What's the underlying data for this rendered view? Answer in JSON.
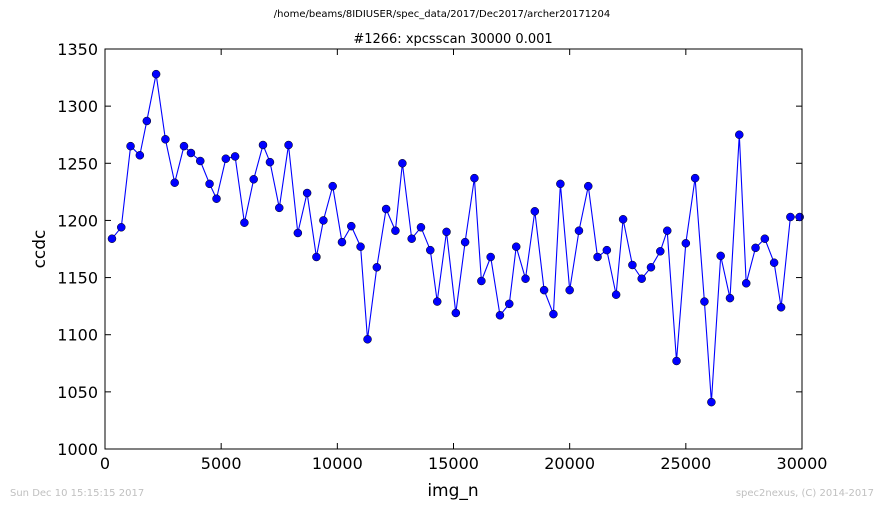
{
  "suptitle": "/home/beams/8IDIUSER/spec_data/2017/Dec2017/archer20171204",
  "footer": {
    "left": "Sun Dec 10 15:15:15 2017",
    "right": "spec2nexus, (C) 2014-2017"
  },
  "chart_data": {
    "type": "line",
    "title": "#1266: xpcsscan 30000 0.001",
    "xlabel": "img_n",
    "ylabel": "ccdc",
    "xlim": [
      0,
      30000
    ],
    "ylim": [
      1000,
      1350
    ],
    "xticks": [
      0,
      5000,
      10000,
      15000,
      20000,
      25000,
      30000
    ],
    "yticks": [
      1000,
      1050,
      1100,
      1150,
      1200,
      1250,
      1300,
      1350
    ],
    "grid": false,
    "marker": "circle",
    "color": "#0000ff",
    "series": [
      {
        "x": [
          300,
          700,
          1100,
          1500,
          1800,
          2200,
          2600,
          3000,
          3400,
          3700,
          4100,
          4500,
          4800,
          5200,
          5600,
          6000,
          6400,
          6800,
          7100,
          7500,
          7900,
          8300,
          8700,
          9100,
          9400,
          9800,
          10200,
          10600,
          11000,
          11300,
          11700,
          12100,
          12500,
          12800,
          13200,
          13600,
          14000,
          14300,
          14700,
          15100,
          15500,
          15900,
          16200,
          16600,
          17000,
          17400,
          17700,
          18100,
          18500,
          18900,
          19300,
          19600,
          20000,
          20400,
          20800,
          21200,
          21600,
          22000,
          22300,
          22700,
          23100,
          23500,
          23900,
          24200,
          24600,
          25000,
          25400,
          25800,
          26100,
          26500,
          26900,
          27300,
          27600,
          28000,
          28400,
          28800,
          29100,
          29500,
          29900
        ],
        "y": [
          1184,
          1194,
          1265,
          1257,
          1287,
          1328,
          1271,
          1233,
          1265,
          1259,
          1252,
          1232,
          1219,
          1254,
          1256,
          1198,
          1236,
          1266,
          1251,
          1211,
          1266,
          1189,
          1224,
          1168,
          1200,
          1230,
          1181,
          1195,
          1177,
          1096,
          1159,
          1210,
          1191,
          1250,
          1184,
          1194,
          1174,
          1129,
          1190,
          1119,
          1181,
          1237,
          1147,
          1168,
          1117,
          1127,
          1177,
          1149,
          1208,
          1139,
          1118,
          1232,
          1139,
          1191,
          1230,
          1168,
          1174,
          1135,
          1201,
          1161,
          1149,
          1159,
          1173,
          1191,
          1077,
          1180,
          1237,
          1129,
          1041,
          1169,
          1132,
          1275,
          1145,
          1176,
          1184,
          1163,
          1124,
          1203,
          1203
        ]
      }
    ]
  }
}
